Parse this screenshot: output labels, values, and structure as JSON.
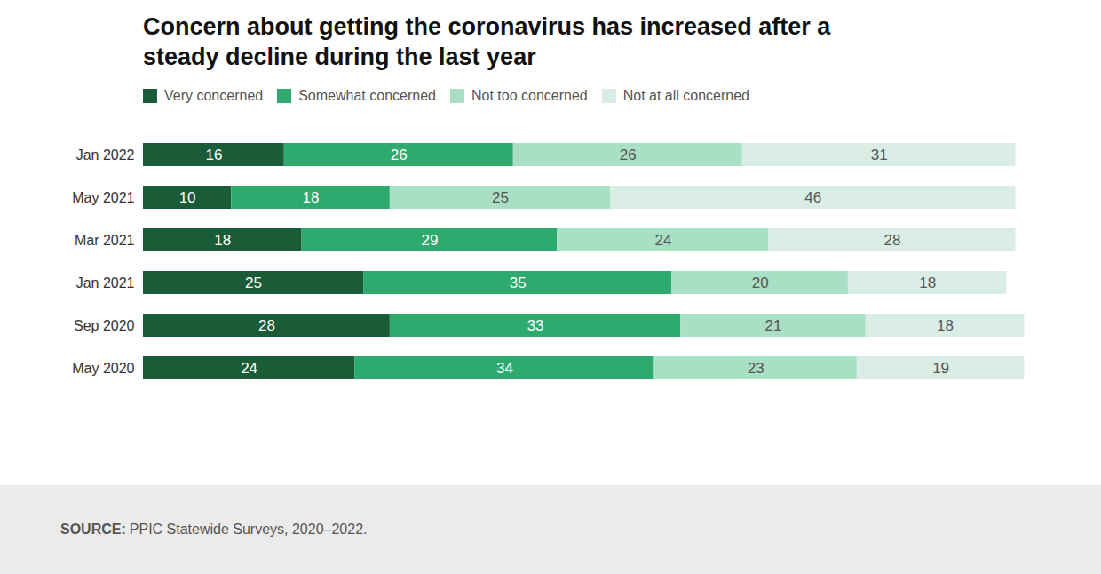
{
  "chart_data": {
    "type": "bar",
    "orientation": "horizontal",
    "stacked": true,
    "data_labels": true,
    "title": "Concern about getting the coronavirus has increased after a steady decline during the last year",
    "source": "SOURCE: PPIC Statewide Surveys, 2020–2022.",
    "categories": [
      "Jan 2022",
      "May 2021",
      "Mar 2021",
      "Jan 2021",
      "Sep 2020",
      "May 2020"
    ],
    "series": [
      {
        "name": "Very concerned",
        "color": "#1a5c38",
        "values": [
          16,
          10,
          18,
          25,
          28,
          24
        ]
      },
      {
        "name": "Somewhat concerned",
        "color": "#2eaa6e",
        "values": [
          26,
          18,
          29,
          35,
          33,
          34
        ]
      },
      {
        "name": "Not too concerned",
        "color": "#a8dfc5",
        "values": [
          26,
          25,
          24,
          20,
          21,
          23
        ]
      },
      {
        "name": "Not at all concerned",
        "color": "#d9ede5",
        "values": [
          31,
          46,
          28,
          18,
          18,
          19
        ]
      }
    ],
    "xlim": [
      0,
      105
    ],
    "tick_labels": "y",
    "grid": false,
    "legend": "top"
  }
}
